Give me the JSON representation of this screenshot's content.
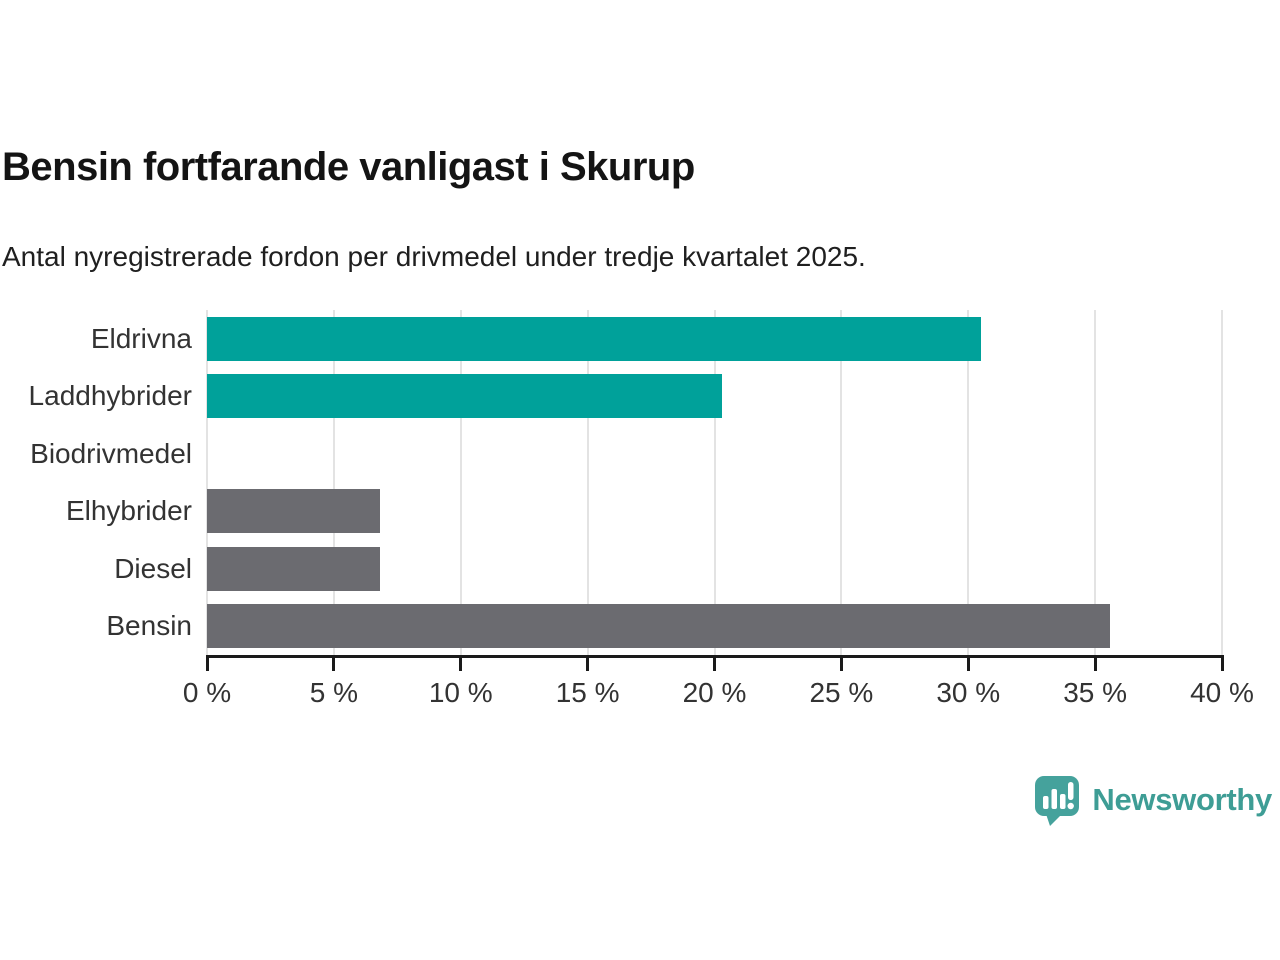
{
  "header": {
    "title": "Bensin fortfarande vanligast i Skurup",
    "subtitle": "Antal nyregistrerade fordon per drivmedel under tredje kvartalet 2025."
  },
  "chart_data": {
    "type": "bar",
    "orientation": "horizontal",
    "title": "Bensin fortfarande vanligast i Skurup",
    "subtitle": "Antal nyregistrerade fordon per drivmedel under tredje kvartalet 2025.",
    "categories": [
      "Eldrivna",
      "Laddhybrider",
      "Biodrivmedel",
      "Elhybrider",
      "Diesel",
      "Bensin"
    ],
    "values": [
      30.5,
      20.3,
      0,
      6.8,
      6.8,
      35.6
    ],
    "bar_colors": [
      "#00A19A",
      "#00A19A",
      "#00A19A",
      "#6B6B70",
      "#6B6B70",
      "#6B6B70"
    ],
    "xlabel": "",
    "ylabel": "",
    "xlim": [
      0,
      40
    ],
    "x_ticks": [
      0,
      5,
      10,
      15,
      20,
      25,
      30,
      35,
      40
    ],
    "x_tick_suffix": " %",
    "grid": "vertical",
    "grid_color": "#e3e3e3",
    "axis_color": "#1a1a1a",
    "tick_label_color": "#333333",
    "category_label_color": "#333333",
    "legend": "none"
  },
  "footer": {
    "brand": "Newsworthy",
    "brand_color": "#3E9D95",
    "logo_icon": "speech-bubble-bar-chart-icon",
    "logo_color": "#45A29C"
  }
}
